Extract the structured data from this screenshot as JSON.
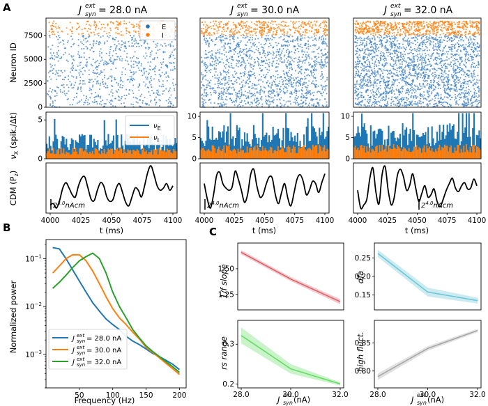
{
  "figure": {
    "panel_labels": [
      "A",
      "B",
      "C"
    ],
    "jsyn_symbol": "J",
    "jsyn_sup": "ext",
    "jsyn_sub": "syn",
    "colors": {
      "E": "#3b7fc4",
      "I": "#ff7f0e",
      "cdm": "#000000"
    }
  },
  "chart_data": [
    {
      "panel": "A-raster",
      "type": "scatter",
      "titles": [
        "= 28.0 nA",
        "= 30.0 nA",
        "= 32.0 nA"
      ],
      "ylabel": "Neuron ID",
      "ylim": [
        0,
        9300
      ],
      "xlim": [
        4000,
        4100
      ],
      "yticks": [
        "0",
        "2500",
        "5000",
        "7500"
      ],
      "ytick_values": [
        0,
        2500,
        5000,
        7500
      ],
      "populations": {
        "E_range": [
          0,
          7500
        ],
        "I_range": [
          7500,
          9000
        ]
      },
      "density_E": [
        800,
        1400,
        2000
      ],
      "density_I": [
        200,
        400,
        650
      ],
      "legend": [
        "E",
        "I"
      ]
    },
    {
      "panel": "A-rates",
      "type": "bar",
      "ylabel": "ν",
      "ylabel_sub": "X",
      "ylabel_unit": " (spik./Δt)",
      "ylims": [
        [
          0,
          6
        ],
        [
          0,
          11
        ],
        [
          0,
          11
        ]
      ],
      "yticks": [
        [
          "0",
          "5"
        ],
        [
          "0",
          "5",
          "10"
        ],
        [
          "0",
          "5",
          "10"
        ]
      ],
      "ytick_values": [
        [
          0,
          5
        ],
        [
          0,
          5,
          10
        ],
        [
          0,
          5,
          10
        ]
      ],
      "mean_E": [
        2.2,
        5.5,
        5.8
      ],
      "mean_I": [
        1.0,
        2.3,
        2.4
      ],
      "legend": [
        {
          "name": "ν",
          "sub": "E"
        },
        {
          "name": "ν",
          "sub": "I"
        }
      ]
    },
    {
      "panel": "A-cdm",
      "type": "line",
      "ylabel": "CDM (P",
      "ylabel_sub": "z",
      "ylabel_end": ")",
      "xlabel": "t (ms)",
      "xticks": [
        "4000",
        "4025",
        "4050",
        "4075",
        "4100"
      ],
      "xtick_values": [
        4000,
        4025,
        4050,
        4075,
        4100
      ],
      "scale_bars": [
        {
          "base": "2",
          "exp": "3.0",
          "unit": "nAcm"
        },
        {
          "base": "2",
          "exp": "4.0",
          "unit": "nAcm"
        },
        {
          "base": "2",
          "exp": "4.0",
          "unit": "nAcm"
        }
      ],
      "traces": [
        [
          0.12,
          0.15,
          0.05,
          0.22,
          0.5,
          0.62,
          0.5,
          0.35,
          0.3,
          0.55,
          0.72,
          0.75,
          0.5,
          0.25,
          0.22,
          0.45,
          0.62,
          0.55,
          0.3,
          0.2,
          0.25,
          0.5,
          0.6,
          0.4,
          0.18,
          0.1,
          0.3,
          0.5,
          0.45,
          0.3,
          0.55,
          0.85,
          1.0,
          0.8,
          0.55,
          0.45,
          0.5,
          0.6,
          0.45,
          0.55
        ],
        [
          0.6,
          0.25,
          0.05,
          0.35,
          0.78,
          0.85,
          0.6,
          0.5,
          0.45,
          0.52,
          0.88,
          0.7,
          0.45,
          0.18,
          0.35,
          0.8,
          0.92,
          0.55,
          0.3,
          0.35,
          0.58,
          0.75,
          0.72,
          0.35,
          0.15,
          0.4,
          0.6,
          0.28,
          0.1,
          0.38,
          0.7,
          0.8,
          0.65,
          0.35,
          0.45,
          0.65,
          0.6,
          0.4,
          0.62,
          0.82
        ],
        [
          0.45,
          0.05,
          0.12,
          0.25,
          0.72,
          0.95,
          0.4,
          0.15,
          0.8,
          0.98,
          0.45,
          0.12,
          0.3,
          0.78,
          0.92,
          0.75,
          0.45,
          0.55,
          0.82,
          0.5,
          0.2,
          0.38,
          0.55,
          0.3,
          0.35,
          0.48,
          0.2,
          0.08,
          0.25,
          0.45,
          0.6,
          0.72,
          0.5,
          0.42,
          0.55,
          0.62,
          0.48,
          0.5,
          0.7,
          0.55
        ]
      ]
    },
    {
      "panel": "B",
      "type": "line",
      "xlabel": "Frequency (Hz)",
      "ylabel": "Normalized power",
      "xlim": [
        0,
        210
      ],
      "xticks": [
        "50",
        "100",
        "150",
        "200"
      ],
      "xtick_values": [
        50,
        100,
        150,
        200
      ],
      "yscale": "log",
      "ylim": [
        0.0002,
        0.25
      ],
      "yticks": [
        {
          "base": "10",
          "exp": "−1"
        },
        {
          "base": "10",
          "exp": "−2"
        },
        {
          "base": "10",
          "exp": "−3"
        }
      ],
      "ytick_values": [
        0.1,
        0.01,
        0.001
      ],
      "legend": [
        "= 28.0 nA",
        "= 30.0 nA",
        "= 32.0 nA"
      ],
      "x": [
        10,
        20,
        30,
        40,
        50,
        60,
        70,
        80,
        90,
        100,
        110,
        120,
        130,
        140,
        150,
        160,
        170,
        180,
        190,
        200
      ],
      "series": [
        {
          "name": "28.0 nA",
          "color": "#1f77b4",
          "values": [
            0.17,
            0.16,
            0.1,
            0.058,
            0.034,
            0.02,
            0.012,
            0.008,
            0.0055,
            0.0042,
            0.0033,
            0.0024,
            0.0019,
            0.0016,
            0.0013,
            0.00105,
            0.0009,
            0.00075,
            0.00062,
            0.00048
          ]
        },
        {
          "name": "30.0 nA",
          "color": "#ff7f0e",
          "values": [
            0.05,
            0.07,
            0.1,
            0.12,
            0.12,
            0.09,
            0.055,
            0.03,
            0.016,
            0.009,
            0.0058,
            0.0042,
            0.0029,
            0.0021,
            0.0014,
            0.0011,
            0.00085,
            0.00065,
            0.0005,
            0.00038
          ]
        },
        {
          "name": "32.0 nA",
          "color": "#2ca02c",
          "values": [
            0.024,
            0.032,
            0.045,
            0.065,
            0.09,
            0.11,
            0.13,
            0.1,
            0.05,
            0.02,
            0.01,
            0.0058,
            0.0033,
            0.0022,
            0.0015,
            0.00115,
            0.0009,
            0.0007,
            0.00055,
            0.00042
          ]
        }
      ]
    },
    {
      "panel": "C",
      "type": "line",
      "x": [
        28.0,
        30.0,
        32.0
      ],
      "xticks": [
        "28.0",
        "30.0",
        "32.0"
      ],
      "xlabel_suffix": " (nA)",
      "subplots": [
        {
          "ylabel": "1/f slope",
          "color": "#d9626b",
          "ylim": [
            1.1,
            1.75
          ],
          "yticks": [
            "1.25",
            "1.50"
          ],
          "ytick_values": [
            1.25,
            1.5
          ],
          "values": [
            1.66,
            1.4,
            1.18
          ],
          "band": [
            0.02,
            0.02,
            0.025
          ]
        },
        {
          "ylabel": "dfa",
          "color": "#6cc7d6",
          "ylim": [
            0.11,
            0.29
          ],
          "yticks": [
            "0.15",
            "0.20",
            "0.25"
          ],
          "ytick_values": [
            0.15,
            0.2,
            0.25
          ],
          "values": [
            0.262,
            0.158,
            0.135
          ],
          "band": [
            0.01,
            0.012,
            0.008
          ]
        },
        {
          "ylabel": "rs range",
          "color": "#66dd66",
          "ylim": [
            0.19,
            0.36
          ],
          "yticks": [
            "0.2",
            "0.3"
          ],
          "ytick_values": [
            0.2,
            0.3
          ],
          "values": [
            0.322,
            0.238,
            0.2
          ],
          "band": [
            0.02,
            0.012,
            0.004
          ]
        },
        {
          "ylabel": "high fluct.",
          "color": "#a8a8a8",
          "ylim": [
            0.77,
            0.89
          ],
          "yticks": [
            "0.80",
            "0.85"
          ],
          "ytick_values": [
            0.8,
            0.85
          ],
          "values": [
            0.79,
            0.84,
            0.872
          ],
          "band": [
            0.006,
            0.004,
            0.003
          ]
        }
      ]
    }
  ]
}
